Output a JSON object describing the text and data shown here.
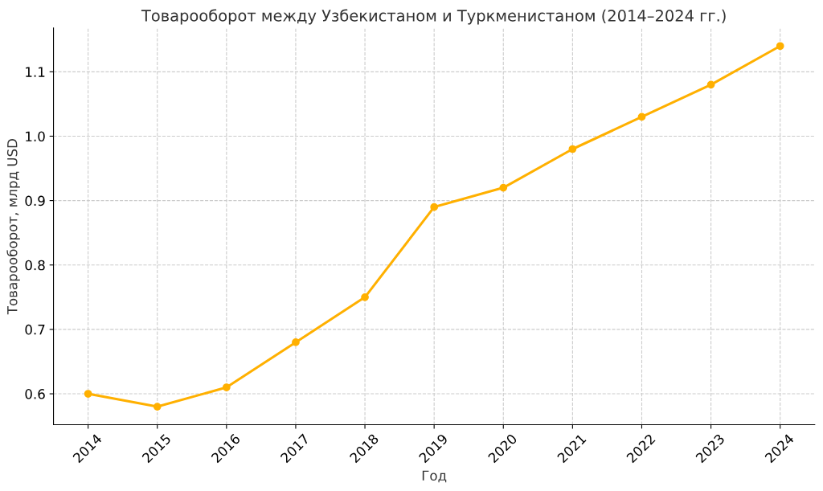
{
  "chart_data": {
    "type": "line",
    "title": "Товарооборот между Узбекистаном и Туркменистаном (2014–2024 гг.)",
    "xlabel": "Год",
    "ylabel": "Товарооборот, млрд USD",
    "x": [
      2014,
      2015,
      2016,
      2017,
      2018,
      2019,
      2020,
      2021,
      2022,
      2023,
      2024
    ],
    "series": [
      {
        "color": "#ffb000",
        "values": [
          0.6,
          0.58,
          0.61,
          0.68,
          0.75,
          0.89,
          0.92,
          0.98,
          1.03,
          1.08,
          1.14
        ]
      }
    ],
    "xlim": [
      2013.5,
      2024.5
    ],
    "xticks": [
      2014,
      2015,
      2016,
      2017,
      2018,
      2019,
      2020,
      2021,
      2022,
      2023,
      2024
    ],
    "ylim": [
      0.552,
      1.168
    ],
    "yticks": [
      {
        "value": 0.6,
        "label": "0.6"
      },
      {
        "value": 0.7,
        "label": "0.7"
      },
      {
        "value": 0.8,
        "label": "0.8"
      },
      {
        "value": 0.9,
        "label": "0.9"
      },
      {
        "value": 1.0,
        "label": "1.0"
      },
      {
        "value": 1.1,
        "label": "1.1"
      }
    ],
    "grid": true,
    "marker": "circle",
    "line_style": "solid"
  }
}
